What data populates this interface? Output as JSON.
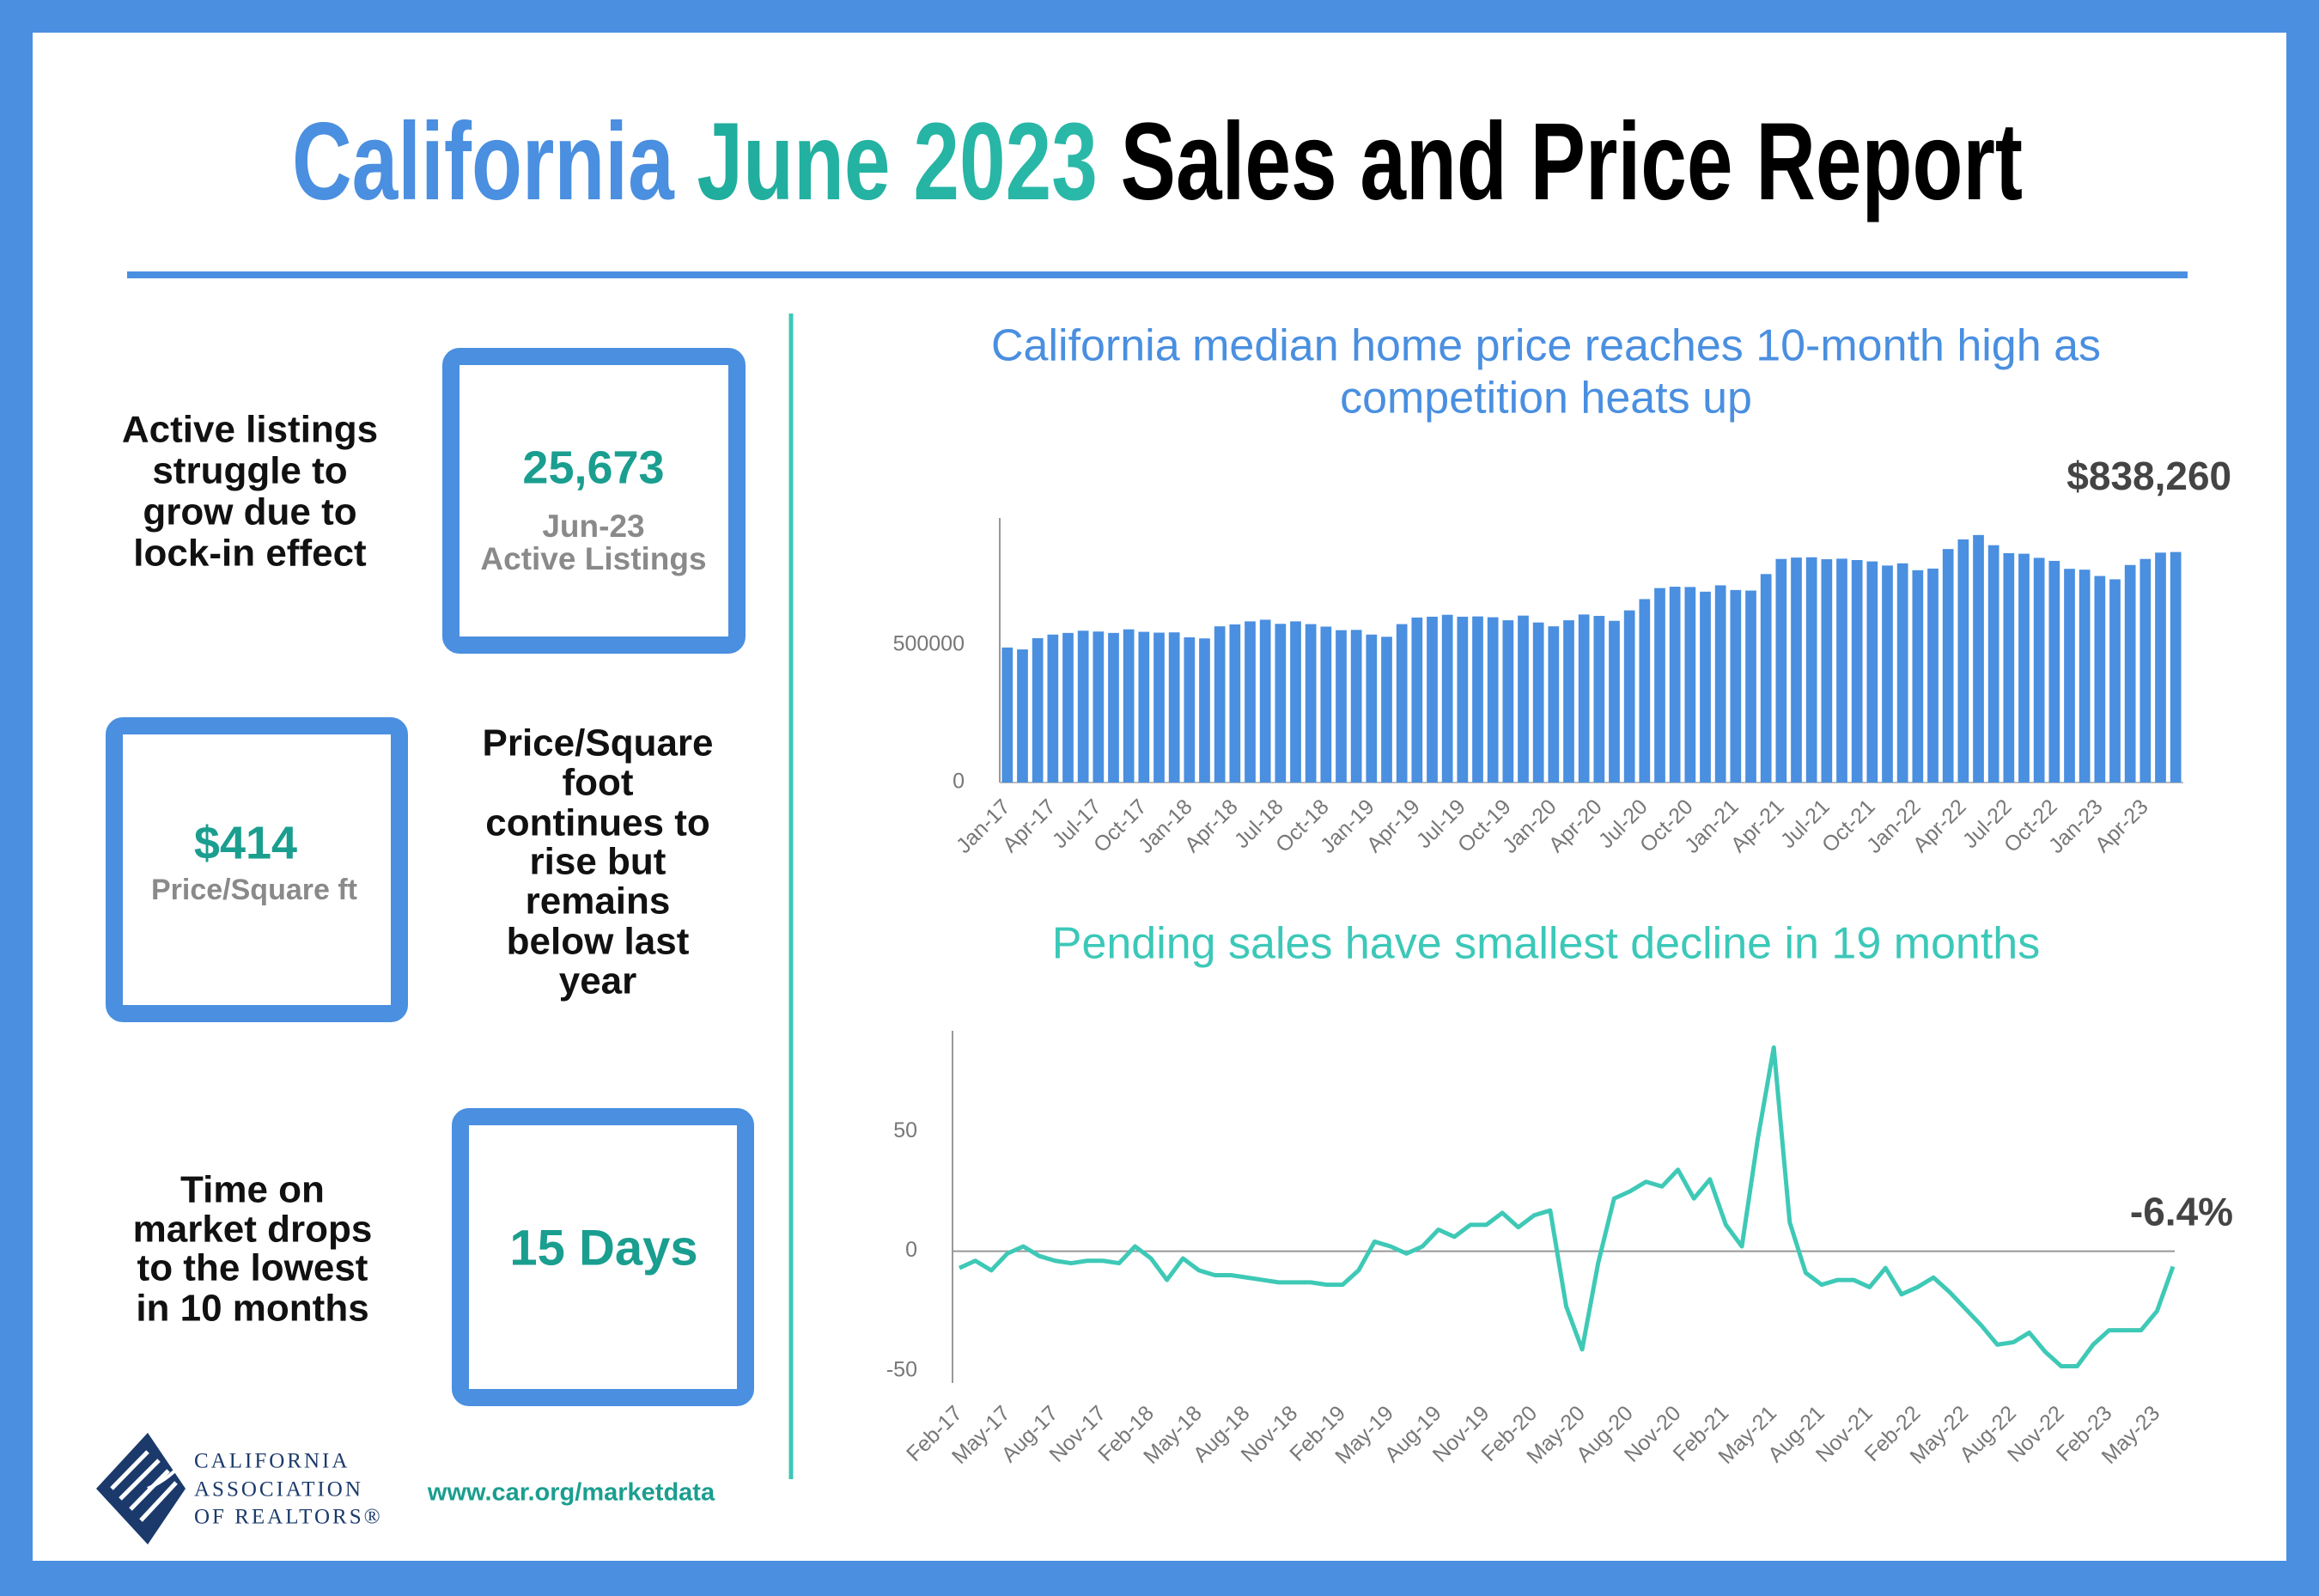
{
  "header": {
    "title": [
      "California",
      "June 2023",
      "Sales and Price Report"
    ]
  },
  "stats": [
    {
      "value": "25,673",
      "caption": [
        "Jun-23",
        "Active Listings"
      ],
      "text": [
        "Active listings",
        "struggle to",
        "grow due to",
        "lock-in effect"
      ]
    },
    {
      "value": "$414",
      "caption": [
        "Price/Square ft"
      ],
      "text": [
        "Price/Square",
        "foot",
        "continues to",
        "rise but",
        "remains",
        "below last",
        "year"
      ]
    },
    {
      "value": "15 Days",
      "text": [
        "Time on",
        "market drops",
        "to the lowest",
        "in 10 months"
      ]
    }
  ],
  "chart_data": [
    {
      "type": "bar",
      "title": [
        "California median home price reaches 10-month high as",
        "competition heats up"
      ],
      "title_color": "#4a8fe0",
      "categories": [
        "Jan-17",
        null,
        null,
        "Apr-17",
        null,
        null,
        "Jul-17",
        null,
        null,
        "Oct-17",
        null,
        null,
        "Jan-18",
        null,
        null,
        "Apr-18",
        null,
        null,
        "Jul-18",
        null,
        null,
        "Oct-18",
        null,
        null,
        "Jan-19",
        null,
        null,
        "Apr-19",
        null,
        null,
        "Jul-19",
        null,
        null,
        "Oct-19",
        null,
        null,
        "Jan-20",
        null,
        null,
        "Apr-20",
        null,
        null,
        "Jul-20",
        null,
        null,
        "Oct-20",
        null,
        null,
        "Jan-21",
        null,
        null,
        "Apr-21",
        null,
        null,
        "Jul-21",
        null,
        null,
        "Oct-21",
        null,
        null,
        "Jan-22",
        null,
        null,
        "Apr-22",
        null,
        null,
        "Jul-22",
        null,
        null,
        "Oct-22",
        null,
        null,
        "Jan-23",
        null,
        null,
        "Apr-23",
        null,
        null
      ],
      "values": [
        491000,
        484000,
        525000,
        538000,
        544000,
        552000,
        549000,
        544000,
        557000,
        548000,
        545000,
        546000,
        528000,
        524000,
        568000,
        575000,
        586000,
        592000,
        577000,
        586000,
        576000,
        567000,
        554000,
        555000,
        538000,
        530000,
        576000,
        600000,
        603000,
        610000,
        603000,
        604000,
        601000,
        590000,
        607000,
        582000,
        568000,
        590000,
        611000,
        606000,
        588000,
        626000,
        667000,
        707000,
        712000,
        711000,
        694000,
        717000,
        700000,
        698000,
        758000,
        813000,
        818000,
        819000,
        812000,
        814000,
        809000,
        804000,
        789000,
        797000,
        772000,
        778000,
        849000,
        884000,
        900000,
        863000,
        834000,
        832000,
        817000,
        806000,
        777000,
        774000,
        751000,
        739000,
        791000,
        813000,
        836000,
        838260
      ],
      "value_labels": [
        null,
        null,
        null,
        null,
        null,
        null,
        null,
        null,
        null,
        null,
        null,
        null,
        null,
        null,
        null,
        null,
        null,
        null,
        null,
        null,
        null,
        null,
        null,
        null,
        null,
        null,
        null,
        null,
        null,
        null,
        null,
        null,
        null,
        null,
        null,
        null,
        null,
        null,
        null,
        null,
        null,
        null,
        null,
        null,
        null,
        null,
        null,
        null,
        null,
        null,
        null,
        null,
        null,
        null,
        null,
        null,
        null,
        null,
        null,
        null,
        null,
        null,
        null,
        null,
        null,
        null,
        null,
        null,
        null,
        null,
        null,
        null,
        null,
        null,
        null,
        null,
        null,
        "$838,260"
      ],
      "color": "#4a8fe0",
      "ylim": [
        0,
        962000
      ],
      "yticks": [
        0,
        500000
      ],
      "grid": false
    },
    {
      "type": "line",
      "title": [
        "Pending sales have smallest decline in 19 months"
      ],
      "title_color": "#3cc8b8",
      "categories": [
        "Feb-17",
        null,
        null,
        "May-17",
        null,
        null,
        "Aug-17",
        null,
        null,
        "Nov-17",
        null,
        null,
        "Feb-18",
        null,
        null,
        "May-18",
        null,
        null,
        "Aug-18",
        null,
        null,
        "Nov-18",
        null,
        null,
        "Feb-19",
        null,
        null,
        "May-19",
        null,
        null,
        "Aug-19",
        null,
        null,
        "Nov-19",
        null,
        null,
        "Feb-20",
        null,
        null,
        "May-20",
        null,
        null,
        "Aug-20",
        null,
        null,
        "Nov-20",
        null,
        null,
        "Feb-21",
        null,
        null,
        "May-21",
        null,
        null,
        "Aug-21",
        null,
        null,
        "Nov-21",
        null,
        null,
        "Feb-22",
        null,
        null,
        "May-22",
        null,
        null,
        "Aug-22",
        null,
        null,
        "Nov-22",
        null,
        null,
        "Feb-23",
        null,
        null,
        "May-23",
        null
      ],
      "values": [
        -7,
        -4,
        -8,
        -1,
        2,
        -2,
        -4,
        -5,
        -4,
        -4,
        -5,
        2,
        -3,
        -12,
        -3,
        -8,
        -10,
        -10,
        -11,
        -12,
        -13,
        -13,
        -13,
        -14,
        -14,
        -8,
        4,
        2,
        -1,
        2,
        9,
        6,
        11,
        11,
        16,
        10,
        15,
        17,
        -23,
        -41,
        -5,
        22,
        25,
        29,
        27,
        34,
        22,
        30,
        11,
        2,
        47,
        85,
        12,
        -9,
        -14,
        -12,
        -12,
        -15,
        -7,
        -18,
        -15,
        -11,
        -17,
        -24,
        -31,
        -39,
        -38,
        -34,
        -42,
        -48,
        -48,
        -39,
        -33,
        -33,
        -33,
        -25,
        -6.4
      ],
      "value_labels": [
        null,
        null,
        null,
        null,
        null,
        null,
        null,
        null,
        null,
        null,
        null,
        null,
        null,
        null,
        null,
        null,
        null,
        null,
        null,
        null,
        null,
        null,
        null,
        null,
        null,
        null,
        null,
        null,
        null,
        null,
        null,
        null,
        null,
        null,
        null,
        null,
        null,
        null,
        null,
        null,
        null,
        null,
        null,
        null,
        null,
        null,
        null,
        null,
        null,
        null,
        null,
        null,
        null,
        null,
        null,
        null,
        null,
        null,
        null,
        null,
        null,
        null,
        null,
        null,
        null,
        null,
        null,
        null,
        null,
        null,
        null,
        null,
        null,
        null,
        null,
        null,
        "-6.4%"
      ],
      "color": "#3ec9b6",
      "ylim": [
        -55,
        92
      ],
      "yticks": [
        -50,
        0,
        50
      ],
      "grid": false
    }
  ],
  "footer": {
    "logo": [
      "CALIFORNIA",
      "ASSOCIATION",
      "OF REALTORS®"
    ],
    "url": "www.car.org/marketdata"
  }
}
